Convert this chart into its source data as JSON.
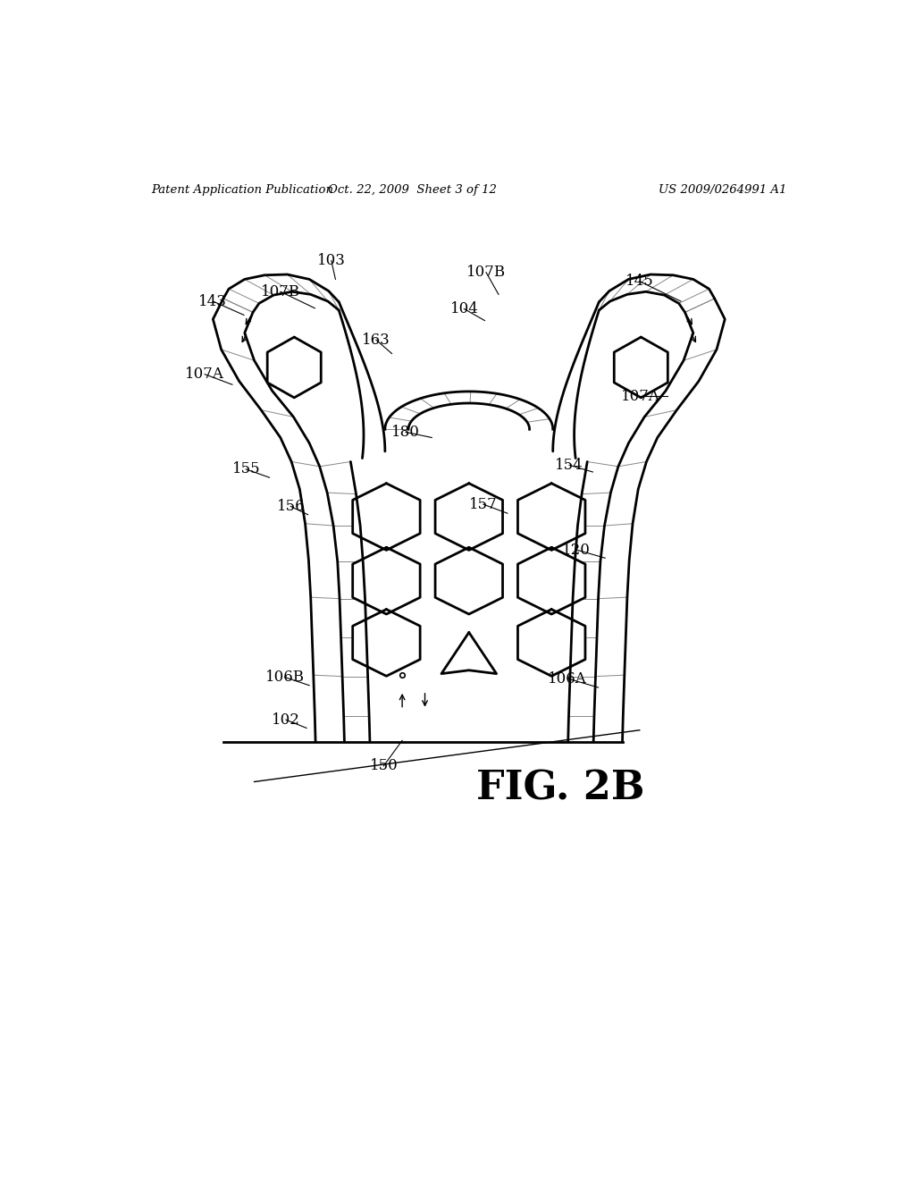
{
  "background_color": "#ffffff",
  "line_color": "#000000",
  "header_left": "Patent Application Publication",
  "header_mid": "Oct. 22, 2009  Sheet 3 of 12",
  "header_right": "US 2009/0264991 A1",
  "fig_label": "FIG. 2B",
  "lw_main": 2.0,
  "lw_thin": 1.0,
  "lw_hatch": 0.7,
  "labels": [
    [
      "103",
      312,
      173,
      318,
      200
    ],
    [
      "107B",
      238,
      218,
      288,
      242
    ],
    [
      "107B",
      537,
      190,
      555,
      222
    ],
    [
      "104",
      505,
      243,
      535,
      260
    ],
    [
      "145",
      760,
      203,
      820,
      232
    ],
    [
      "143",
      140,
      232,
      185,
      252
    ],
    [
      "107A",
      128,
      338,
      168,
      353
    ],
    [
      "107A",
      762,
      370,
      800,
      370
    ],
    [
      "163",
      377,
      288,
      400,
      308
    ],
    [
      "180",
      420,
      422,
      458,
      430
    ],
    [
      "155",
      188,
      476,
      222,
      488
    ],
    [
      "154",
      658,
      470,
      692,
      480
    ],
    [
      "156",
      253,
      530,
      278,
      542
    ],
    [
      "157",
      533,
      527,
      568,
      540
    ],
    [
      "120",
      668,
      593,
      710,
      605
    ],
    [
      "106B",
      244,
      778,
      280,
      790
    ],
    [
      "106A",
      655,
      780,
      700,
      793
    ],
    [
      "102",
      246,
      840,
      276,
      852
    ],
    [
      "150",
      388,
      907,
      415,
      870
    ]
  ]
}
